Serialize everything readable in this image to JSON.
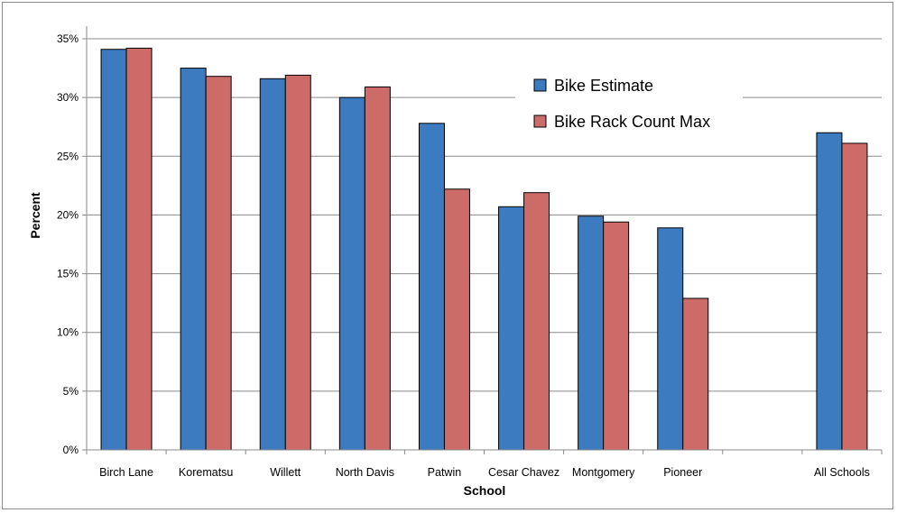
{
  "chart_data": {
    "type": "bar",
    "title": "",
    "xlabel": "School",
    "ylabel": "Percent",
    "ylim": [
      0,
      35
    ],
    "ytick_step": 5,
    "ytick_format": "percent",
    "grid": true,
    "legend_position": "top-center",
    "categories": [
      "Birch Lane",
      "Korematsu",
      "Willett",
      "North Davis",
      "Patwin",
      "Cesar Chavez",
      "Montgomery",
      "Pioneer",
      "",
      "All Schools"
    ],
    "series": [
      {
        "name": "Bike Estimate",
        "color": "#3d7bc0",
        "values": [
          34.1,
          32.5,
          31.6,
          30.0,
          27.8,
          20.7,
          19.9,
          18.9,
          null,
          27.0
        ]
      },
      {
        "name": "Bike Rack Count Max",
        "color": "#cc6b68",
        "values": [
          34.2,
          31.8,
          31.9,
          30.9,
          22.2,
          21.9,
          19.4,
          12.9,
          null,
          26.1
        ]
      }
    ]
  }
}
